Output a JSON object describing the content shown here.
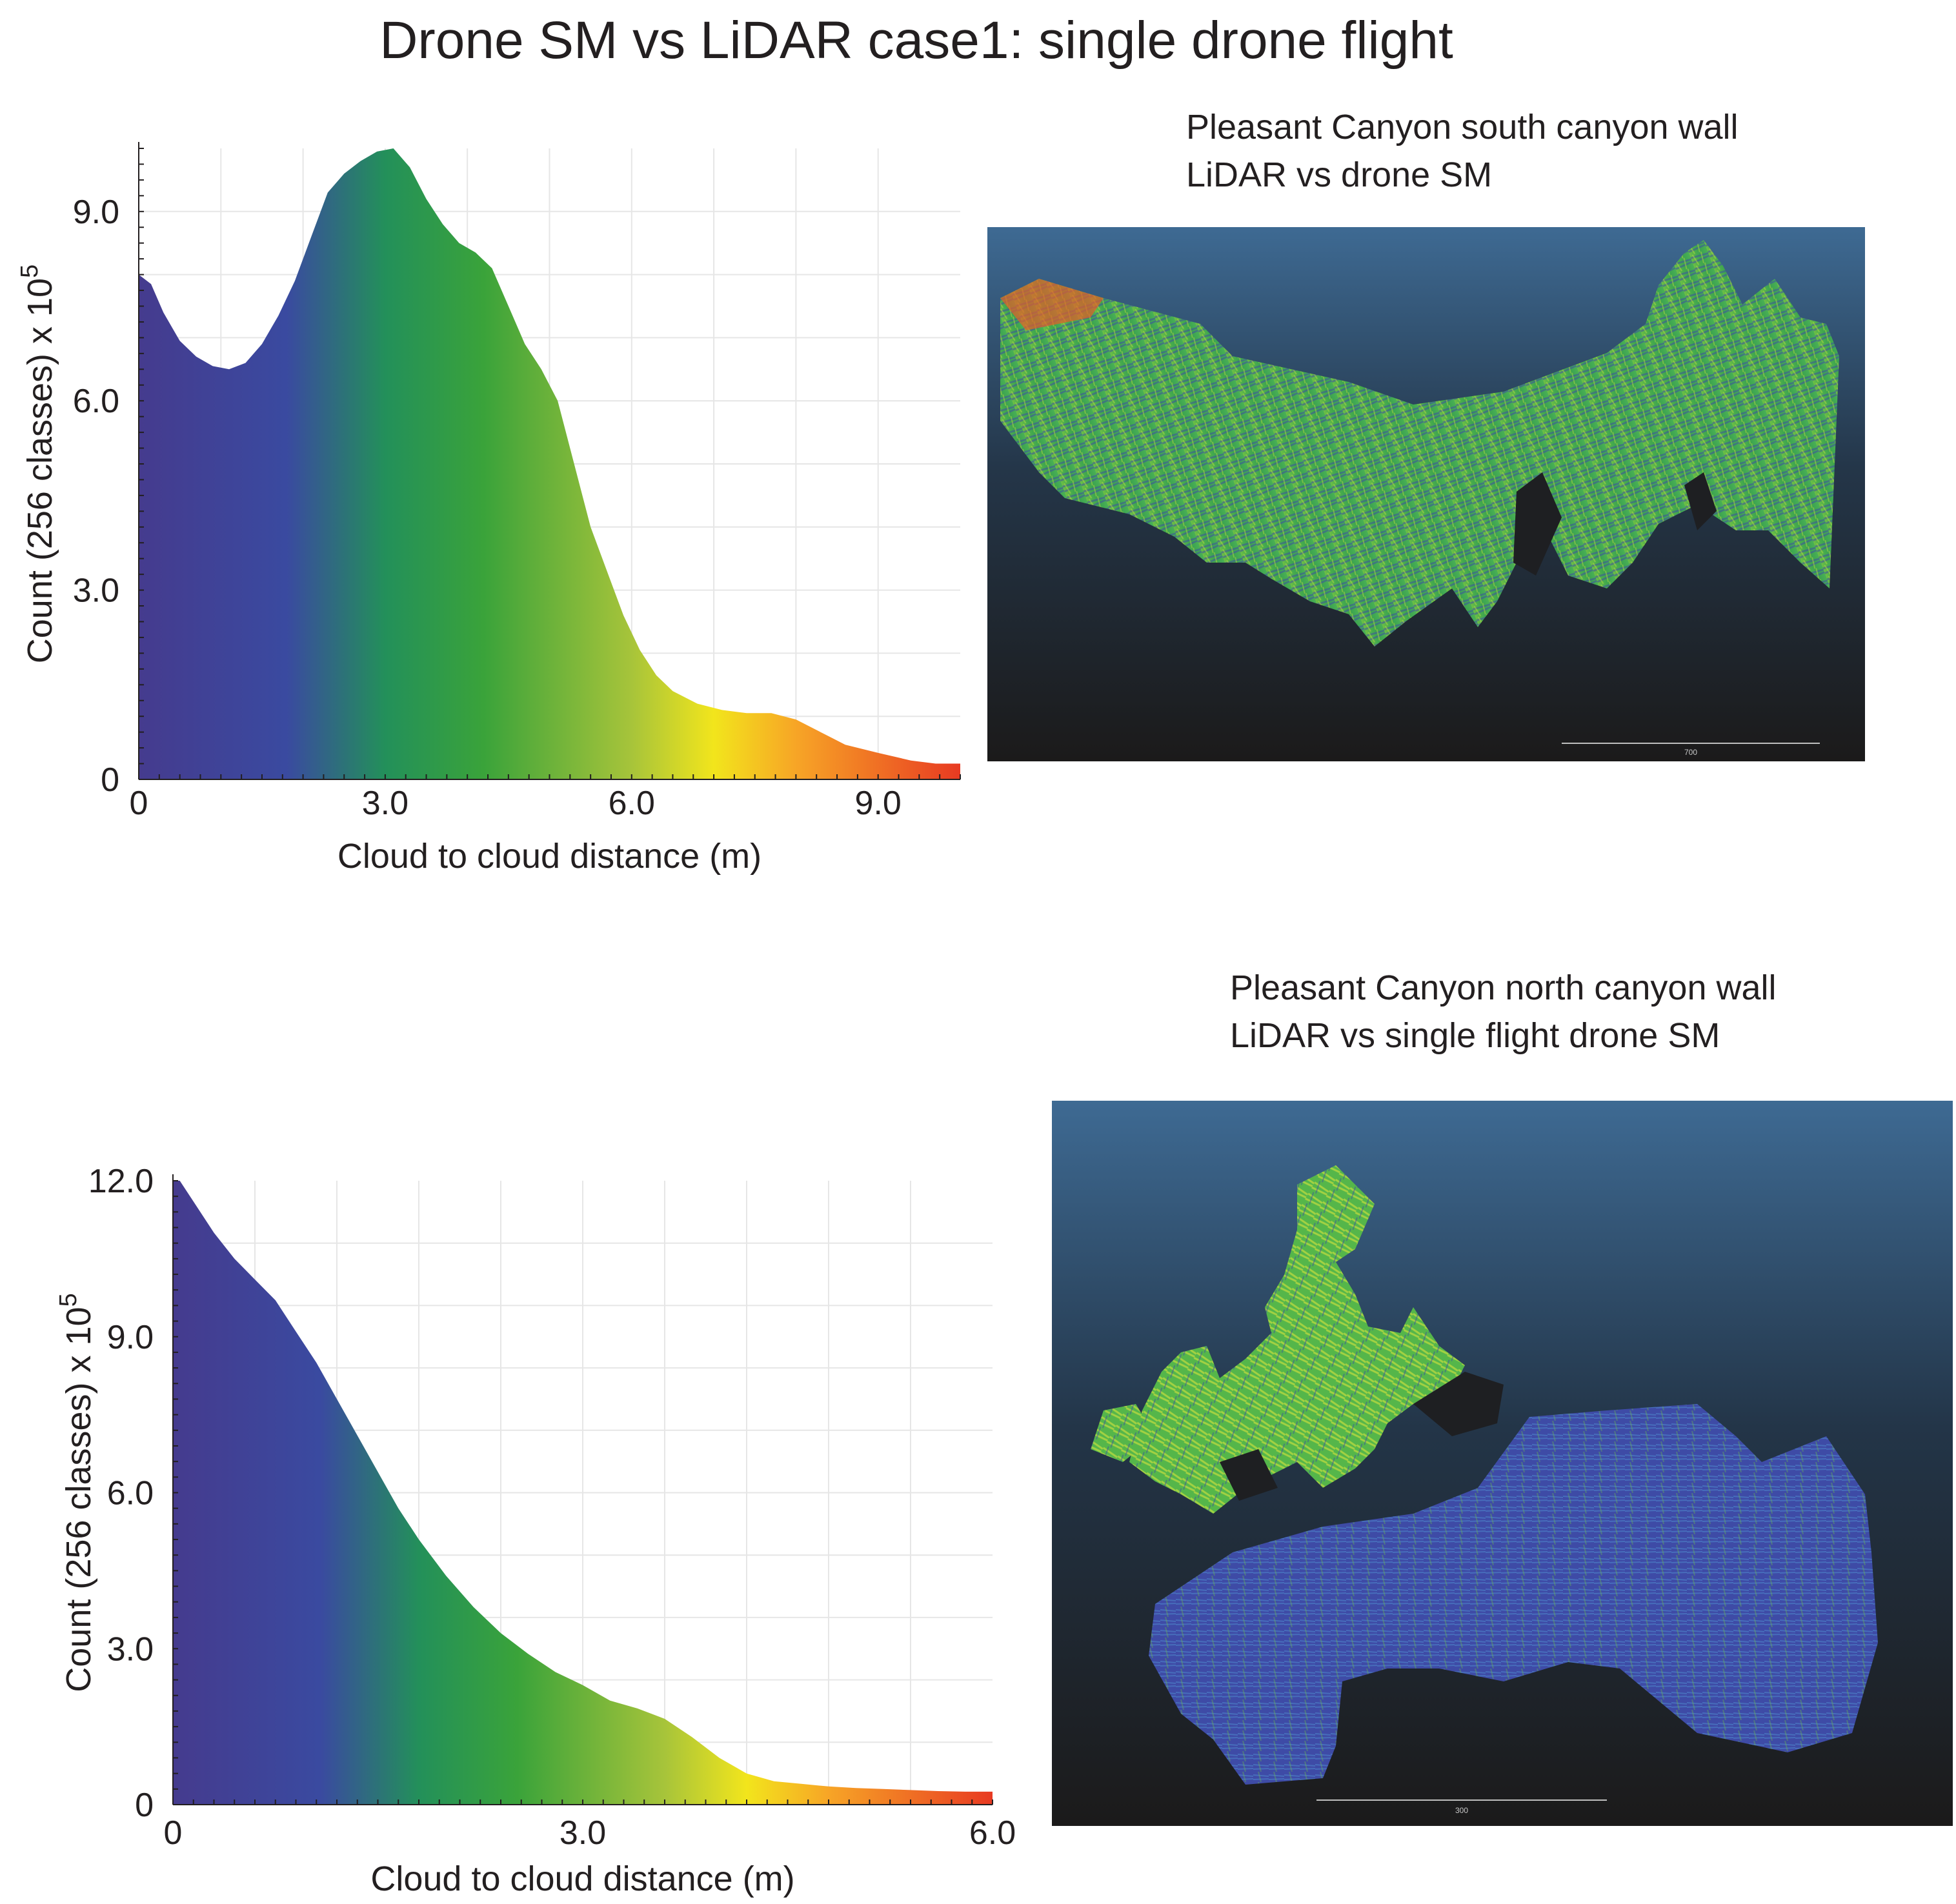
{
  "title": "Drone SM vs LiDAR case1:  single drone flight",
  "panels": [
    {
      "map_title_lines": [
        "Pleasant Canyon south canyon wall",
        "LiDAR vs drone SM"
      ],
      "scalebar_label": "700"
    },
    {
      "map_title_lines": [
        "Pleasant Canyon north canyon wall",
        "LiDAR vs  single flight drone SM"
      ],
      "scalebar_label": "300"
    }
  ],
  "chart_data": [
    {
      "type": "area",
      "title": "",
      "xlabel": "Cloud to cloud distance (m)",
      "ylabel": "Count (256 classes)",
      "ylabel_multiplier": "x 10",
      "ylabel_exponent": "5",
      "xlim": [
        0,
        10
      ],
      "ylim": [
        0,
        10
      ],
      "xticks": [
        0,
        3,
        6,
        9
      ],
      "xtick_labels": [
        "0",
        "3.0",
        "6.0",
        "9.0"
      ],
      "yticks": [
        0,
        3,
        6,
        9
      ],
      "ytick_labels": [
        "0",
        "3.0",
        "6.0",
        "9.0"
      ],
      "grid": true,
      "colormap": "blue-green-yellow-red",
      "x": [
        0,
        0.15,
        0.3,
        0.5,
        0.7,
        0.9,
        1.1,
        1.3,
        1.5,
        1.7,
        1.9,
        2.1,
        2.3,
        2.5,
        2.7,
        2.9,
        3.1,
        3.3,
        3.5,
        3.7,
        3.9,
        4.1,
        4.3,
        4.5,
        4.7,
        4.9,
        5.1,
        5.3,
        5.5,
        5.7,
        5.9,
        6.1,
        6.3,
        6.5,
        6.8,
        7.1,
        7.4,
        7.7,
        8.0,
        8.3,
        8.6,
        9.0,
        9.4,
        9.7,
        10.0
      ],
      "y": [
        8.0,
        7.85,
        7.4,
        6.95,
        6.7,
        6.55,
        6.5,
        6.6,
        6.9,
        7.35,
        7.9,
        8.6,
        9.3,
        9.6,
        9.8,
        9.95,
        10.0,
        9.7,
        9.2,
        8.8,
        8.5,
        8.35,
        8.1,
        7.5,
        6.9,
        6.5,
        6.0,
        5.0,
        4.0,
        3.3,
        2.6,
        2.05,
        1.65,
        1.4,
        1.2,
        1.1,
        1.05,
        1.05,
        0.95,
        0.75,
        0.55,
        0.42,
        0.3,
        0.25,
        0.25
      ]
    },
    {
      "type": "area",
      "title": "",
      "xlabel": "Cloud to cloud distance (m)",
      "ylabel": "Count (256 classes)",
      "ylabel_multiplier": "x 10",
      "ylabel_exponent": "5",
      "xlim": [
        0,
        6
      ],
      "ylim": [
        0,
        12
      ],
      "xticks": [
        0,
        3,
        6
      ],
      "xtick_labels": [
        "0",
        "3.0",
        "6.0"
      ],
      "yticks": [
        0,
        3,
        6,
        9,
        12
      ],
      "ytick_labels": [
        "0",
        "3.0",
        "6.0",
        "9.0",
        "12.0"
      ],
      "grid": true,
      "colormap": "blue-green-yellow-red",
      "x": [
        0,
        0.05,
        0.15,
        0.3,
        0.45,
        0.6,
        0.75,
        0.9,
        1.05,
        1.2,
        1.35,
        1.5,
        1.65,
        1.8,
        2.0,
        2.2,
        2.4,
        2.6,
        2.8,
        3.0,
        3.2,
        3.4,
        3.6,
        3.8,
        4.0,
        4.2,
        4.4,
        4.6,
        4.8,
        5.0,
        5.2,
        5.4,
        5.6,
        5.8,
        6.0
      ],
      "y": [
        12.0,
        12.0,
        11.6,
        11.0,
        10.5,
        10.1,
        9.7,
        9.1,
        8.5,
        7.8,
        7.1,
        6.4,
        5.7,
        5.1,
        4.4,
        3.8,
        3.3,
        2.9,
        2.55,
        2.3,
        2.0,
        1.85,
        1.65,
        1.3,
        0.9,
        0.6,
        0.45,
        0.4,
        0.35,
        0.32,
        0.3,
        0.28,
        0.26,
        0.25,
        0.25
      ]
    }
  ]
}
